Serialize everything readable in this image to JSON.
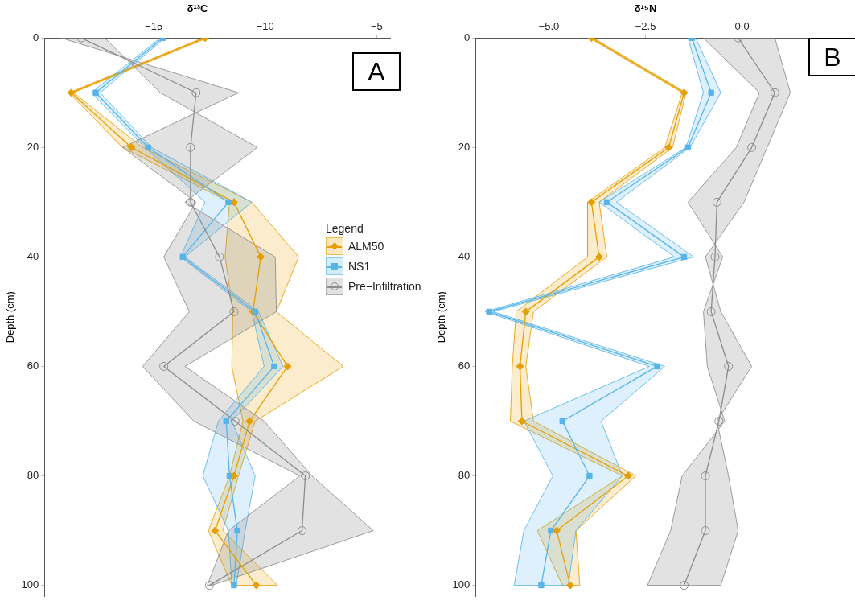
{
  "chart_data": [
    {
      "type": "line",
      "orientation": "horizontal",
      "title": "δ¹³C",
      "ylabel": "Depth (cm)",
      "legend": "center right",
      "legend_title": "Legend",
      "grid": false,
      "annotations": [
        "A"
      ],
      "x": [
        0,
        10,
        20,
        30,
        40,
        50,
        60,
        70,
        80,
        90,
        100
      ],
      "xlim": [
        -19.9,
        -4.4
      ],
      "xticks": [
        {
          "value": -15,
          "label": "−15"
        },
        {
          "value": -10,
          "label": "−10"
        },
        {
          "value": -5,
          "label": "−5"
        }
      ],
      "ylim": [
        102,
        0
      ],
      "yticks": [
        0,
        20,
        40,
        60,
        80,
        100
      ],
      "series": [
        {
          "name": "ALM50",
          "color": "#e69f00",
          "marker": "diamond",
          "values": [
            -12.7,
            -18.7,
            -16.0,
            -11.4,
            -10.2,
            -10.55,
            -9.0,
            -10.7,
            -11.4,
            -12.25,
            -10.4
          ],
          "lower": [
            -12.8,
            -18.8,
            -16.4,
            -11.6,
            -11.8,
            -11.45,
            -11.5,
            -11.0,
            -11.6,
            -12.55,
            -11.5
          ],
          "upper": [
            -12.6,
            -18.6,
            -15.5,
            -10.6,
            -8.5,
            -9.5,
            -6.5,
            -10.45,
            -11.2,
            -11.9,
            -9.45
          ]
        },
        {
          "name": "NS1",
          "color": "#56b4e9",
          "marker": "square",
          "values": [
            -14.6,
            -17.6,
            -15.25,
            -11.65,
            -13.7,
            -10.45,
            -9.6,
            -11.75,
            -11.6,
            -11.25,
            -11.4
          ],
          "lower": [
            -14.7,
            -17.8,
            -15.4,
            -12.7,
            -13.8,
            -10.6,
            -10.05,
            -12.1,
            -12.8,
            -11.65,
            -11.5
          ],
          "upper": [
            -14.5,
            -17.4,
            -15.1,
            -10.6,
            -13.6,
            -10.3,
            -9.2,
            -11.5,
            -10.45,
            -10.9,
            -11.3
          ]
        },
        {
          "name": "Pre−Infiltration",
          "color": "#8c8c8c",
          "marker": "circle",
          "values": [
            -18.25,
            -13.1,
            -13.35,
            -13.35,
            -12.05,
            -11.4,
            -14.55,
            -11.35,
            -8.2,
            -8.35,
            -12.5
          ],
          "lower": [
            -19.15,
            -11.2,
            -16.4,
            -13.1,
            -14.55,
            -13.4,
            -15.5,
            -13.2,
            -8.45,
            -11.65,
            -12.6
          ],
          "upper": [
            -17.2,
            -14.7,
            -10.35,
            -13.6,
            -9.55,
            -9.5,
            -13.6,
            -10.05,
            -7.9,
            -5.15,
            -12.4
          ]
        }
      ]
    },
    {
      "type": "line",
      "orientation": "horizontal",
      "title": "δ¹⁵N",
      "ylabel": "Depth (cm)",
      "grid": false,
      "annotations": [
        "B"
      ],
      "x": [
        0,
        10,
        20,
        30,
        40,
        50,
        60,
        70,
        80,
        90,
        100
      ],
      "xlim": [
        -6.9,
        2.8
      ],
      "xticks": [
        {
          "value": -5,
          "label": "−5.0"
        },
        {
          "value": -2.5,
          "label": "−2.5"
        },
        {
          "value": 0,
          "label": "0.0"
        }
      ],
      "ylim": [
        102,
        0
      ],
      "yticks": [
        0,
        20,
        40,
        60,
        80,
        100
      ],
      "series": [
        {
          "color": "#e69f00",
          "marker": "diamond",
          "values": [
            -3.9,
            -1.5,
            -1.9,
            -3.9,
            -3.7,
            -5.6,
            -5.75,
            -5.7,
            -2.95,
            -4.8,
            -4.45
          ],
          "lower": [
            -3.95,
            -1.55,
            -2.0,
            -4.0,
            -4.0,
            -5.85,
            -5.95,
            -6.0,
            -3.1,
            -5.3,
            -4.65
          ],
          "upper": [
            -3.85,
            -1.45,
            -1.8,
            -3.7,
            -3.5,
            -5.4,
            -5.6,
            -5.4,
            -2.75,
            -4.3,
            -4.2
          ]
        },
        {
          "color": "#56b4e9",
          "marker": "square",
          "values": [
            -1.3,
            -0.8,
            -1.4,
            -3.5,
            -1.5,
            -6.55,
            -2.2,
            -4.65,
            -3.95,
            -4.95,
            -5.2
          ],
          "lower": [
            -1.4,
            -1.0,
            -1.45,
            -3.7,
            -1.75,
            -6.65,
            -2.4,
            -5.65,
            -4.9,
            -5.65,
            -5.9
          ],
          "upper": [
            -1.2,
            -0.55,
            -1.35,
            -3.25,
            -1.25,
            -6.45,
            -2.0,
            -3.65,
            -3.1,
            -4.3,
            -4.5
          ]
        },
        {
          "color": "#8c8c8c",
          "marker": "circle",
          "values": [
            -0.1,
            0.85,
            0.25,
            -0.65,
            -0.7,
            -0.8,
            -0.35,
            -0.6,
            -0.95,
            -0.95,
            -1.5
          ],
          "lower": [
            -1.0,
            0.45,
            -0.15,
            -1.4,
            -0.5,
            -1.0,
            -0.9,
            -0.45,
            -1.55,
            -1.85,
            -2.45
          ],
          "upper": [
            0.85,
            1.25,
            0.65,
            0.05,
            -0.95,
            -0.55,
            0.25,
            -0.65,
            -0.35,
            -0.1,
            -0.55
          ]
        }
      ]
    }
  ]
}
